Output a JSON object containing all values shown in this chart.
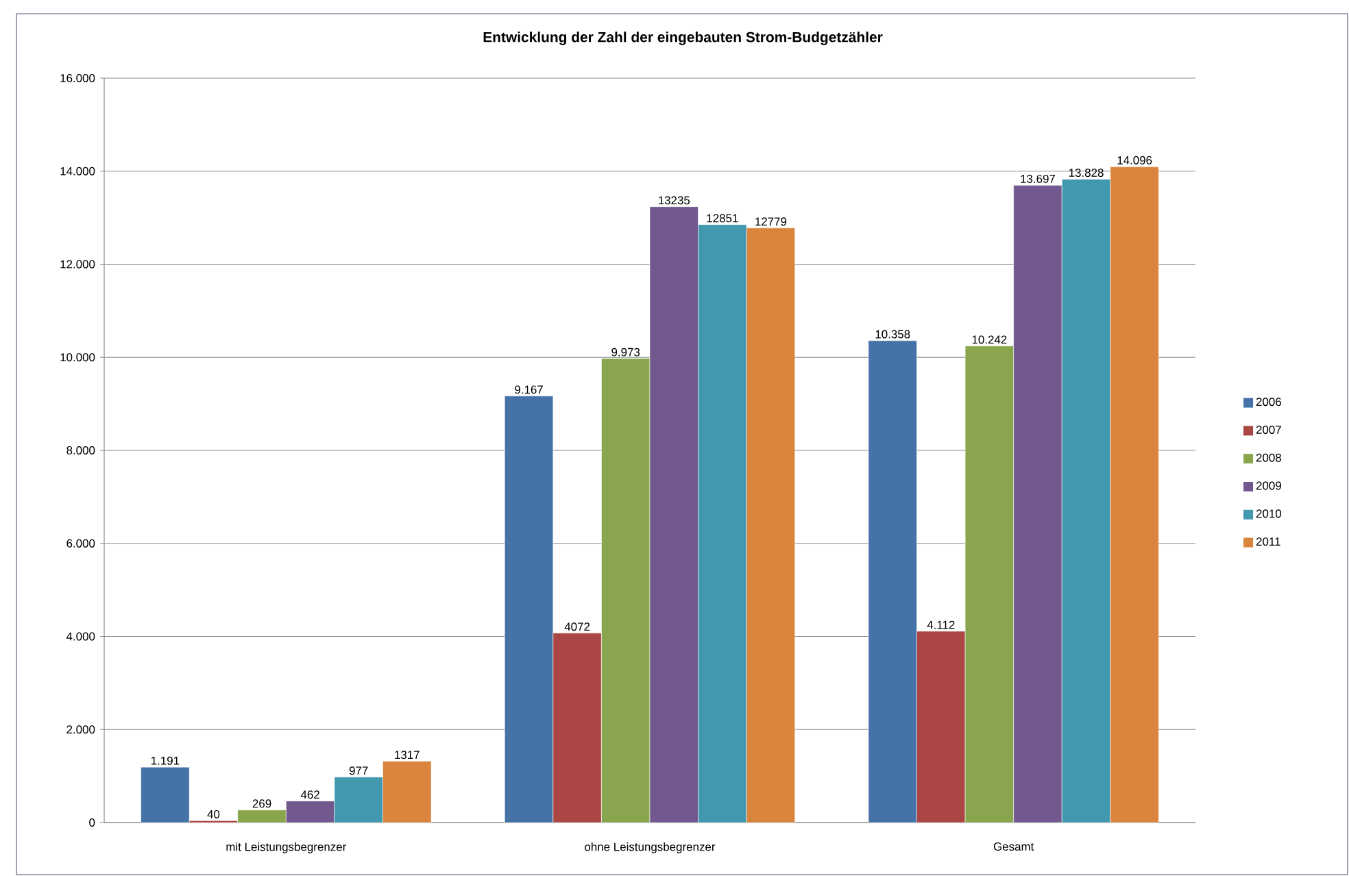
{
  "chart_data": {
    "type": "bar",
    "title": "Entwicklung der Zahl der eingebauten Strom-Budgetzähler",
    "categories": [
      "mit Leistungsbegrenzer",
      "ohne Leistungsbegrenzer",
      "Gesamt"
    ],
    "series": [
      {
        "name": "2006",
        "color": "#4572a7",
        "values": [
          1191,
          9167,
          10358
        ],
        "value_labels": [
          "1.191",
          "9.167",
          "10.358"
        ]
      },
      {
        "name": "2007",
        "color": "#aa4643",
        "values": [
          40,
          4072,
          4112
        ],
        "value_labels": [
          "40",
          "4072",
          "4.112"
        ]
      },
      {
        "name": "2008",
        "color": "#89a54e",
        "values": [
          269,
          9973,
          10242
        ],
        "value_labels": [
          "269",
          "9.973",
          "10.242"
        ]
      },
      {
        "name": "2009",
        "color": "#71588f",
        "values": [
          462,
          13235,
          13697
        ],
        "value_labels": [
          "462",
          "13235",
          "13.697"
        ]
      },
      {
        "name": "2010",
        "color": "#4198af",
        "values": [
          977,
          12851,
          13828
        ],
        "value_labels": [
          "977",
          "12851",
          "13.828"
        ]
      },
      {
        "name": "2011",
        "color": "#db843d",
        "values": [
          1317,
          12779,
          14096
        ],
        "value_labels": [
          "1317",
          "12779",
          "14.096"
        ]
      }
    ],
    "ylim": [
      0,
      16000
    ],
    "yticks": [
      0,
      {
        "value": 2000,
        "label": "2.000"
      },
      {
        "value": 4000,
        "label": "4.000"
      },
      {
        "value": 6000,
        "label": "6.000"
      },
      {
        "value": 8000,
        "label": "8.000"
      },
      {
        "value": 10000,
        "label": "10.000"
      },
      {
        "value": 12000,
        "label": "12.000"
      },
      {
        "value": 14000,
        "label": "14.000"
      },
      {
        "value": 16000,
        "label": "16.000"
      }
    ],
    "grid": "y",
    "legend": "right"
  }
}
